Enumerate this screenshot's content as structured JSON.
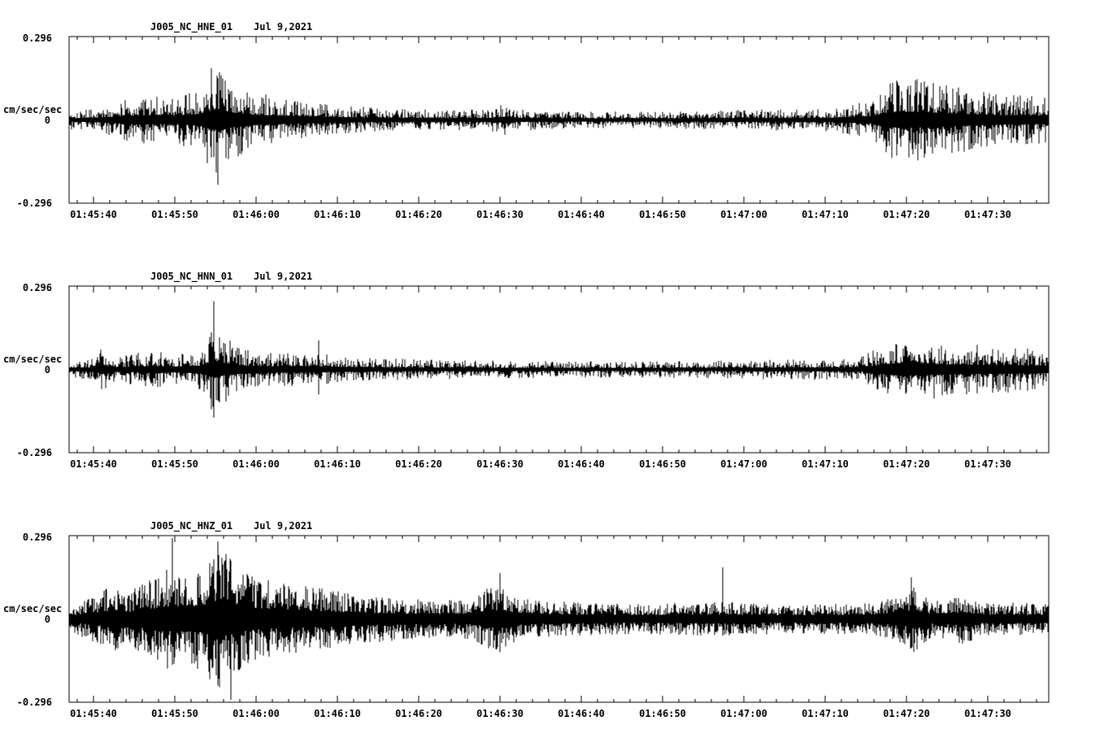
{
  "chart_data": {
    "type": "line",
    "subtype": "seismogram",
    "background": "#ffffff",
    "axis_color": "#000000",
    "trace_color": "#000000",
    "grid": false,
    "legend": "none",
    "panels": [
      {
        "id": "hne",
        "station_channel": "J005_NC_HNE_01",
        "date": "Jul 9,2021",
        "ylabel": "cm/sec/sec",
        "ymax_label": "0.296",
        "yzero_label": "0",
        "ymin_label": "-0.296",
        "ylim": [
          -0.296,
          0.296
        ],
        "xticks": [
          "01:45:40",
          "01:45:50",
          "01:46:00",
          "01:46:10",
          "01:46:20",
          "01:46:30",
          "01:46:40",
          "01:46:50",
          "01:47:00",
          "01:47:10",
          "01:47:20",
          "01:47:30"
        ],
        "x_start_offset_sec": 3,
        "x_tick_interval_sec": 10,
        "x_minor_tick_interval_sec": 2,
        "x_total_sec": 120.5,
        "seed": 101,
        "base": 0.18,
        "sharpness": 2.2,
        "envelope": [
          [
            0,
            0.12
          ],
          [
            0.03,
            0.14
          ],
          [
            0.07,
            0.3
          ],
          [
            0.1,
            0.28
          ],
          [
            0.13,
            0.35
          ],
          [
            0.145,
            0.6
          ],
          [
            0.155,
            0.72
          ],
          [
            0.165,
            0.5
          ],
          [
            0.19,
            0.33
          ],
          [
            0.23,
            0.25
          ],
          [
            0.27,
            0.18
          ],
          [
            0.32,
            0.14
          ],
          [
            0.38,
            0.12
          ],
          [
            0.43,
            0.13
          ],
          [
            0.445,
            0.2
          ],
          [
            0.46,
            0.13
          ],
          [
            0.52,
            0.1
          ],
          [
            0.6,
            0.1
          ],
          [
            0.68,
            0.12
          ],
          [
            0.74,
            0.13
          ],
          [
            0.78,
            0.14
          ],
          [
            0.82,
            0.25
          ],
          [
            0.835,
            0.45
          ],
          [
            0.85,
            0.55
          ],
          [
            0.87,
            0.5
          ],
          [
            0.89,
            0.45
          ],
          [
            0.91,
            0.4
          ],
          [
            0.94,
            0.32
          ],
          [
            0.97,
            0.3
          ],
          [
            1,
            0.28
          ]
        ],
        "spikes": [
          [
            0.152,
            0.5,
            0.78
          ],
          [
            0.145,
            0.62,
            0.45
          ]
        ]
      },
      {
        "id": "hnn",
        "station_channel": "J005_NC_HNN_01",
        "date": "Jul 9,2021",
        "ylabel": "cm/sec/sec",
        "ymax_label": "0.296",
        "yzero_label": "0",
        "ymin_label": "-0.296",
        "ylim": [
          -0.296,
          0.296
        ],
        "xticks": [
          "01:45:40",
          "01:45:50",
          "01:46:00",
          "01:46:10",
          "01:46:20",
          "01:46:30",
          "01:46:40",
          "01:46:50",
          "01:47:00",
          "01:47:10",
          "01:47:20",
          "01:47:30"
        ],
        "x_start_offset_sec": 3,
        "x_tick_interval_sec": 10,
        "x_minor_tick_interval_sec": 2,
        "x_total_sec": 120.5,
        "seed": 202,
        "base": 0.18,
        "sharpness": 2.2,
        "envelope": [
          [
            0,
            0.1
          ],
          [
            0.025,
            0.13
          ],
          [
            0.035,
            0.28
          ],
          [
            0.05,
            0.15
          ],
          [
            0.07,
            0.2
          ],
          [
            0.09,
            0.22
          ],
          [
            0.11,
            0.18
          ],
          [
            0.135,
            0.25
          ],
          [
            0.148,
            0.55
          ],
          [
            0.158,
            0.4
          ],
          [
            0.18,
            0.25
          ],
          [
            0.21,
            0.2
          ],
          [
            0.25,
            0.22
          ],
          [
            0.26,
            0.18
          ],
          [
            0.3,
            0.14
          ],
          [
            0.36,
            0.12
          ],
          [
            0.42,
            0.11
          ],
          [
            0.5,
            0.1
          ],
          [
            0.58,
            0.1
          ],
          [
            0.66,
            0.11
          ],
          [
            0.72,
            0.12
          ],
          [
            0.78,
            0.13
          ],
          [
            0.81,
            0.16
          ],
          [
            0.83,
            0.3
          ],
          [
            0.85,
            0.42
          ],
          [
            0.87,
            0.38
          ],
          [
            0.9,
            0.32
          ],
          [
            0.93,
            0.3
          ],
          [
            0.96,
            0.28
          ],
          [
            1,
            0.24
          ]
        ],
        "spikes": [
          [
            0.148,
            0.82,
            0.58
          ],
          [
            0.255,
            0.35,
            0.3
          ]
        ]
      },
      {
        "id": "hnz",
        "station_channel": "J005_NC_HNZ_01",
        "date": "Jul 9,2021",
        "ylabel": "cm/sec/sec",
        "ymax_label": "0.296",
        "yzero_label": "0",
        "ymin_label": "-0.296",
        "ylim": [
          -0.296,
          0.296
        ],
        "xticks": [
          "01:45:40",
          "01:45:50",
          "01:46:00",
          "01:46:10",
          "01:46:20",
          "01:46:30",
          "01:46:40",
          "01:46:50",
          "01:47:00",
          "01:47:10",
          "01:47:20",
          "01:47:30"
        ],
        "x_start_offset_sec": 3,
        "x_tick_interval_sec": 10,
        "x_minor_tick_interval_sec": 2,
        "x_total_sec": 120.5,
        "seed": 303,
        "base": 0.25,
        "sharpness": 1.4,
        "envelope": [
          [
            0,
            0.15
          ],
          [
            0.03,
            0.3
          ],
          [
            0.045,
            0.42
          ],
          [
            0.06,
            0.32
          ],
          [
            0.08,
            0.45
          ],
          [
            0.1,
            0.6
          ],
          [
            0.12,
            0.5
          ],
          [
            0.14,
            0.7
          ],
          [
            0.155,
            0.85
          ],
          [
            0.17,
            0.65
          ],
          [
            0.19,
            0.5
          ],
          [
            0.21,
            0.45
          ],
          [
            0.24,
            0.4
          ],
          [
            0.27,
            0.35
          ],
          [
            0.3,
            0.3
          ],
          [
            0.34,
            0.25
          ],
          [
            0.38,
            0.22
          ],
          [
            0.41,
            0.25
          ],
          [
            0.435,
            0.42
          ],
          [
            0.45,
            0.3
          ],
          [
            0.48,
            0.22
          ],
          [
            0.53,
            0.2
          ],
          [
            0.58,
            0.18
          ],
          [
            0.63,
            0.2
          ],
          [
            0.68,
            0.2
          ],
          [
            0.73,
            0.18
          ],
          [
            0.78,
            0.18
          ],
          [
            0.82,
            0.2
          ],
          [
            0.845,
            0.28
          ],
          [
            0.862,
            0.4
          ],
          [
            0.88,
            0.22
          ],
          [
            0.9,
            0.25
          ],
          [
            0.915,
            0.32
          ],
          [
            0.93,
            0.2
          ],
          [
            0.96,
            0.2
          ],
          [
            1,
            0.18
          ]
        ],
        "spikes": [
          [
            0.105,
            0.97,
            0.55
          ],
          [
            0.152,
            0.93,
            0.8
          ],
          [
            0.165,
            0.7,
            0.97
          ],
          [
            0.44,
            0.55,
            0.4
          ],
          [
            0.667,
            0.62,
            0.2
          ],
          [
            0.86,
            0.5,
            0.35
          ]
        ]
      }
    ]
  }
}
